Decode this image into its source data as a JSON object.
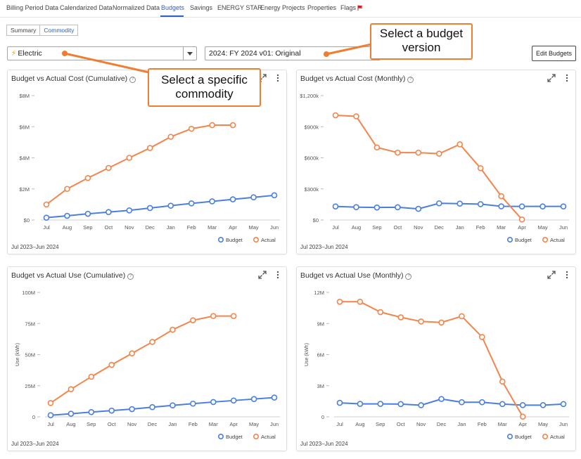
{
  "nav": {
    "tabs": [
      {
        "label": "Billing Period Data"
      },
      {
        "label": "Calendarized Data"
      },
      {
        "label": "Normalized Data"
      },
      {
        "label": "Budgets"
      },
      {
        "label": "Savings"
      },
      {
        "label": "ENERGY STAR"
      },
      {
        "label": "Energy Projects"
      },
      {
        "label": "Properties"
      },
      {
        "label": "Flags"
      }
    ],
    "active": "Budgets",
    "flag_color": "#cc1f1f"
  },
  "subtabs": [
    {
      "label": "Summary"
    },
    {
      "label": "Commodity"
    }
  ],
  "subtabs_active": "Commodity",
  "commodity_select": {
    "value": "Electric",
    "icon": "bolt-icon"
  },
  "budget_select": {
    "value": "2024: FY 2024 v01: Original"
  },
  "edit_budgets_label": "Edit Budgets",
  "colors": {
    "budget": "#4a7fe0",
    "actual": "#f5844a",
    "accent": "#2b63c4",
    "callout": "#f07d30"
  },
  "callouts": {
    "budget_version": "Select a budget version",
    "commodity": "Select a specific commodity"
  },
  "charts": [
    {
      "title": "Budget vs Actual Cost (Cumulative)",
      "period": "Jul 2023–Jun 2024"
    },
    {
      "title": "Budget vs Actual Cost (Monthly)",
      "period": "Jul 2023–Jun 2024"
    },
    {
      "title": "Budget vs Actual Use (Cumulative)",
      "period": "Jul 2023–Jun 2024"
    },
    {
      "title": "Budget vs Actual Use (Monthly)",
      "period": "Jul 2023–Jun 2024"
    }
  ],
  "chart_data": [
    {
      "type": "line",
      "title": "Budget vs Actual Cost (Cumulative)",
      "x": [
        "Jul",
        "Aug",
        "Sep",
        "Oct",
        "Nov",
        "Dec",
        "Jan",
        "Feb",
        "Mar",
        "Apr",
        "May",
        "Jun"
      ],
      "yticks": [
        "$0",
        "$2M",
        "$4M",
        "$6M",
        "$8M"
      ],
      "ylim": [
        0,
        8000000
      ],
      "ylabel": "",
      "grid": false,
      "legend": "bottom-right",
      "series": [
        {
          "name": "Budget",
          "values": [
            150000,
            270000,
            400000,
            510000,
            620000,
            770000,
            920000,
            1070000,
            1200000,
            1330000,
            1460000,
            1590000
          ]
        },
        {
          "name": "Actual",
          "values": [
            1000000,
            2000000,
            2700000,
            3350000,
            4000000,
            4630000,
            5350000,
            5870000,
            6100000,
            6100000,
            null,
            null
          ]
        }
      ]
    },
    {
      "type": "line",
      "title": "Budget vs Actual Cost (Monthly)",
      "x": [
        "Jul",
        "Aug",
        "Sep",
        "Oct",
        "Nov",
        "Dec",
        "Jan",
        "Feb",
        "Mar",
        "Apr",
        "May",
        "Jun"
      ],
      "yticks": [
        "$0",
        "$300k",
        "$600k",
        "$900k",
        "$1,200k"
      ],
      "ylim": [
        0,
        1200000
      ],
      "ylabel": "",
      "grid": false,
      "legend": "bottom-right",
      "series": [
        {
          "name": "Budget",
          "values": [
            131000,
            124000,
            121000,
            123000,
            108000,
            161000,
            158000,
            153000,
            132000,
            131000,
            131000,
            131000
          ]
        },
        {
          "name": "Actual",
          "values": [
            1010000,
            1000000,
            700000,
            650000,
            650000,
            640000,
            730000,
            500000,
            230000,
            5000,
            null,
            null
          ]
        }
      ]
    },
    {
      "type": "line",
      "title": "Budget vs Actual Use (Cumulative)",
      "x": [
        "Jul",
        "Aug",
        "Sep",
        "Oct",
        "Nov",
        "Dec",
        "Jan",
        "Feb",
        "Mar",
        "Apr",
        "May",
        "Jun"
      ],
      "yticks": [
        "0",
        "25M",
        "50M",
        "75M",
        "100M"
      ],
      "ylim": [
        0,
        100000000
      ],
      "ylabel": "Use (kWh)",
      "grid": false,
      "legend": "bottom-right",
      "series": [
        {
          "name": "Budget",
          "values": [
            1300000,
            2500000,
            3800000,
            5000000,
            6200000,
            7800000,
            9200000,
            10600000,
            11900000,
            13100000,
            14300000,
            15500000
          ]
        },
        {
          "name": "Actual",
          "values": [
            11100000,
            22200000,
            32200000,
            41800000,
            51000000,
            60200000,
            70000000,
            77600000,
            81000000,
            81000000,
            null,
            null
          ]
        }
      ]
    },
    {
      "type": "line",
      "title": "Budget vs Actual Use (Monthly)",
      "x": [
        "Jul",
        "Aug",
        "Sep",
        "Oct",
        "Nov",
        "Dec",
        "Jan",
        "Feb",
        "Mar",
        "Apr",
        "May",
        "Jun"
      ],
      "yticks": [
        "0",
        "3M",
        "6M",
        "9M",
        "12M"
      ],
      "ylim": [
        0,
        12000000
      ],
      "ylabel": "Use (kWh)",
      "grid": false,
      "legend": "bottom-right",
      "series": [
        {
          "name": "Budget",
          "values": [
            1350000,
            1250000,
            1250000,
            1230000,
            1120000,
            1720000,
            1410000,
            1410000,
            1230000,
            1130000,
            1130000,
            1230000
          ]
        },
        {
          "name": "Actual",
          "values": [
            11100000,
            11100000,
            10100000,
            9600000,
            9200000,
            9100000,
            9700000,
            7700000,
            3400000,
            20000,
            null,
            null
          ]
        }
      ]
    }
  ]
}
